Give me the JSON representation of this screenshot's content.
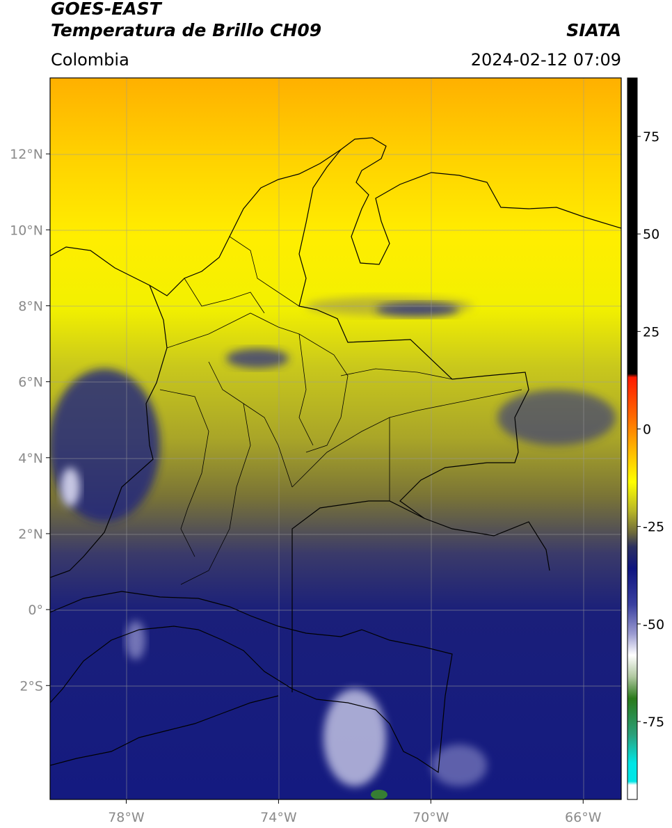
{
  "header": {
    "satellite": "GOES-EAST",
    "product": "Temperatura de Brillo CH09",
    "organization": "SIATA",
    "region": "Colombia",
    "datetime": "2024-02-12 07:09"
  },
  "map": {
    "lon_range": [
      -80,
      -65
    ],
    "lat_range": [
      -5,
      14
    ],
    "lat_ticks": [
      {
        "value": 12,
        "label": "12°N"
      },
      {
        "value": 10,
        "label": "10°N"
      },
      {
        "value": 8,
        "label": "8°N"
      },
      {
        "value": 6,
        "label": "6°N"
      },
      {
        "value": 4,
        "label": "4°N"
      },
      {
        "value": 2,
        "label": "2°N"
      },
      {
        "value": 0,
        "label": "0°"
      },
      {
        "value": -2,
        "label": "2°S"
      }
    ],
    "lon_ticks": [
      {
        "value": -78,
        "label": "78°W"
      },
      {
        "value": -74,
        "label": "74°W"
      },
      {
        "value": -70,
        "label": "70°W"
      },
      {
        "value": -66,
        "label": "66°W"
      }
    ],
    "grid": true
  },
  "colorbar": {
    "range": [
      -95,
      90
    ],
    "ticks": [
      {
        "value": 75,
        "label": "75"
      },
      {
        "value": 50,
        "label": "50"
      },
      {
        "value": 25,
        "label": "25"
      },
      {
        "value": 0,
        "label": "0"
      },
      {
        "value": -25,
        "label": "-25"
      },
      {
        "value": -50,
        "label": "-50"
      },
      {
        "value": -75,
        "label": "-75"
      }
    ],
    "colors": {
      "black": "#000000",
      "red": "#ff1a00",
      "orange": "#ff9a00",
      "yellow": "#ffff00",
      "olive": "#9a9a26",
      "grey": "#5a5a4a",
      "navy": "#0e1480",
      "white": "#ffffff",
      "green": "#2a7a1a",
      "cyan": "#00e6e6"
    }
  }
}
